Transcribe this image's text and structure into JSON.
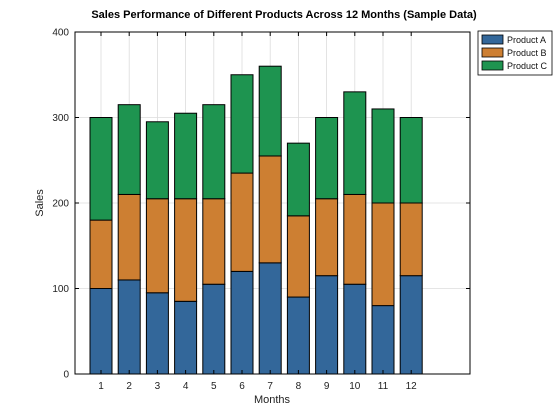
{
  "chart_data": {
    "type": "bar",
    "stacked": true,
    "title": "Sales Performance of Different Products Across 12 Months (Sample Data)",
    "xlabel": "Months",
    "ylabel": "Sales",
    "categories": [
      "1",
      "2",
      "3",
      "4",
      "5",
      "6",
      "7",
      "8",
      "9",
      "10",
      "11",
      "12"
    ],
    "ylim": [
      0,
      400
    ],
    "yticks": [
      0,
      100,
      200,
      300,
      400
    ],
    "grid": true,
    "legend_position": "outside-top-right",
    "series": [
      {
        "name": "Product A",
        "color": "#33679a",
        "values": [
          100,
          110,
          95,
          85,
          105,
          120,
          130,
          90,
          115,
          105,
          80,
          115
        ]
      },
      {
        "name": "Product B",
        "color": "#cd7f32",
        "values": [
          80,
          100,
          110,
          120,
          100,
          115,
          125,
          95,
          90,
          105,
          120,
          85
        ]
      },
      {
        "name": "Product C",
        "color": "#1e9450",
        "values": [
          120,
          105,
          90,
          100,
          110,
          115,
          105,
          85,
          95,
          120,
          110,
          100
        ]
      }
    ]
  }
}
